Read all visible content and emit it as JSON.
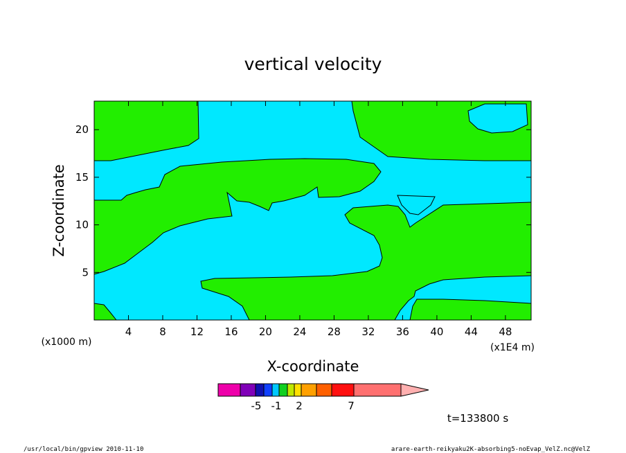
{
  "chart_data": {
    "type": "heatmap",
    "title": "vertical velocity",
    "xlabel": "X-coordinate",
    "ylabel": "Z-coordinate",
    "x_unit_label": "(x1E4 m)",
    "y_unit_label": "(x1000 m)",
    "xlim": [
      0,
      51
    ],
    "ylim": [
      0,
      23
    ],
    "x_ticks": [
      4,
      8,
      12,
      16,
      20,
      24,
      28,
      32,
      36,
      40,
      44,
      48
    ],
    "y_ticks": [
      5,
      10,
      15,
      20
    ],
    "fill_colors": {
      "positive": "#22ee00",
      "negative": "#00e8ff"
    },
    "colorbar": {
      "colors": [
        "#ee00aa",
        "#8000b8",
        "#1010b0",
        "#1040ff",
        "#00c8ff",
        "#10d020",
        "#c0e800",
        "#ffe000",
        "#ffa000",
        "#ff6000",
        "#ff1010",
        "#ff7070",
        "#ffb0b0"
      ],
      "labels": [
        {
          "text": "-5",
          "index": 1
        },
        {
          "text": "-1",
          "index": 3
        },
        {
          "text": "2",
          "index": 6
        },
        {
          "text": "7",
          "index": 10
        }
      ]
    },
    "time_label": "t=133800 s",
    "footer_left": "/usr/local/bin/gpview  2010-11-10",
    "footer_right": "arare-earth-reikyaku2K-absorbing5-noEvap_VelZ.nc@VelZ"
  }
}
